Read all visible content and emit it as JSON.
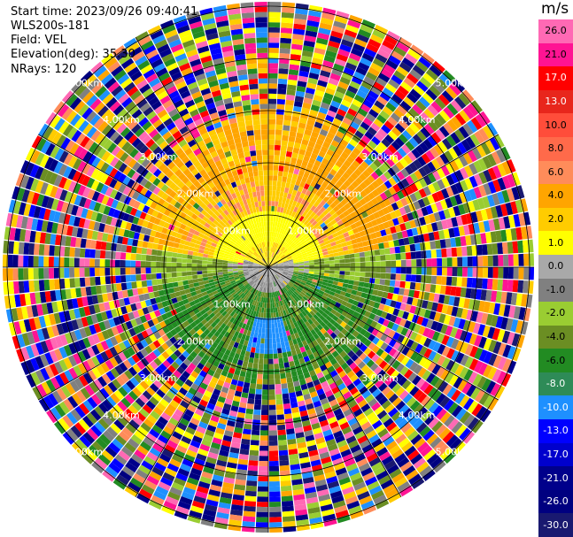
{
  "header": {
    "start_time": "Start time: 2023/09/26 09:40:41",
    "instrument": "WLS200s-181",
    "field": "Field: VEL",
    "elevation": "Elevation(deg): 35.30",
    "nrays": "NRays: 120"
  },
  "plot": {
    "ray_count": 120,
    "ring_labels": [
      "1.00km",
      "2.00km",
      "3.00km",
      "4.00km",
      "5.00km"
    ]
  },
  "colorbar": {
    "unit": "m/s",
    "ticks": [
      "26.0",
      "21.0",
      "17.0",
      "13.0",
      "10.0",
      "8.0",
      "6.0",
      "4.0",
      "2.0",
      "1.0",
      "0.0",
      "-1.0",
      "-2.0",
      "-4.0",
      "-6.0",
      "-8.0",
      "-10.0",
      "-13.0",
      "-17.0",
      "-21.0",
      "-26.0",
      "-30.0"
    ],
    "colors": [
      "#ff69b4",
      "#ff1493",
      "#ff0000",
      "#e8261c",
      "#ff4d3a",
      "#ff6a4a",
      "#ff8c5a",
      "#ffa500",
      "#ffcc00",
      "#ffff00",
      "#a9a9a9",
      "#808080",
      "#9acd32",
      "#6b8e23",
      "#228b22",
      "#2e8b57",
      "#1e90ff",
      "#0000ff",
      "#0000cd",
      "#00008b",
      "#000080",
      "#191970"
    ]
  }
}
